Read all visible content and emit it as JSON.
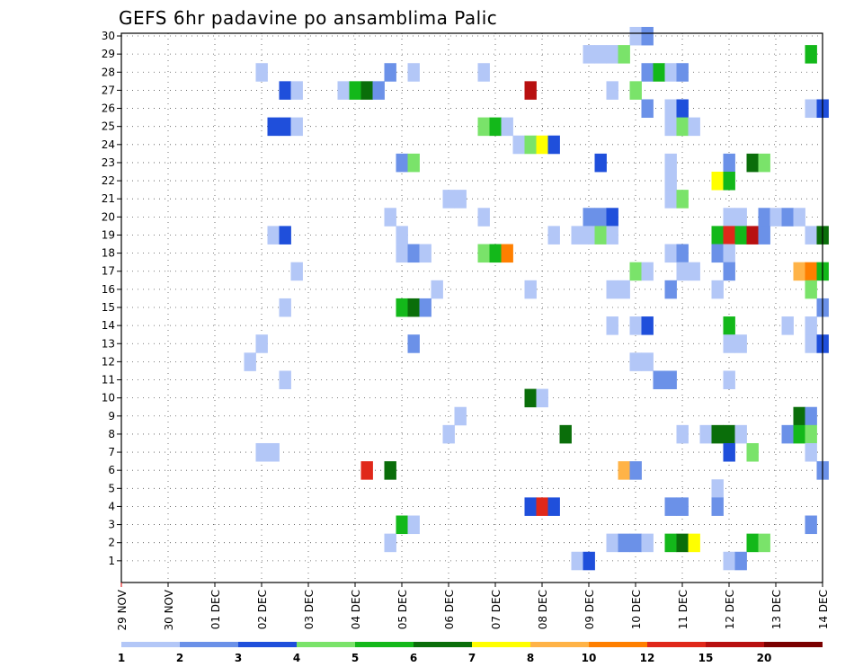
{
  "chart_data": {
    "type": "heatmap",
    "title": "GEFS 6hr padavine po ansamblima Palic",
    "xlabel": "",
    "ylabel": "",
    "x_ticks": [
      "29 NOV",
      "30 NOV",
      "01 DEC",
      "02 DEC",
      "03 DEC",
      "04 DEC",
      "05 DEC",
      "06 DEC",
      "07 DEC",
      "08 DEC",
      "09 DEC",
      "10 DEC",
      "11 DEC",
      "12 DEC",
      "13 DEC",
      "14 DEC"
    ],
    "y_ticks": [
      1,
      2,
      3,
      4,
      5,
      6,
      7,
      8,
      9,
      10,
      11,
      12,
      13,
      14,
      15,
      16,
      17,
      18,
      19,
      20,
      21,
      22,
      23,
      24,
      25,
      26,
      27,
      28,
      29,
      30
    ],
    "xlim": [
      0,
      15
    ],
    "ylim": [
      0,
      30
    ],
    "grid": true,
    "legend": {
      "placement": "bottom",
      "labels": [
        "1",
        "2",
        "3",
        "4",
        "5",
        "6",
        "7",
        "8",
        "10",
        "12",
        "15",
        "20"
      ],
      "colors": [
        "#b3c7f7",
        "#6b91e8",
        "#1f4fdb",
        "#7ae36a",
        "#13b81a",
        "#0a6e0a",
        "#ffff00",
        "#ffb347",
        "#ff7f00",
        "#e0281a",
        "#b81010",
        "#7a0000"
      ]
    },
    "cells": [
      {
        "x": 11.0,
        "y": 30,
        "level": 1
      },
      {
        "x": 11.25,
        "y": 30,
        "level": 2
      },
      {
        "x": 10.0,
        "y": 29,
        "level": 1
      },
      {
        "x": 10.25,
        "y": 29,
        "level": 1
      },
      {
        "x": 10.5,
        "y": 29,
        "level": 1
      },
      {
        "x": 10.75,
        "y": 29,
        "level": 4
      },
      {
        "x": 14.75,
        "y": 29,
        "level": 5
      },
      {
        "x": 3.0,
        "y": 28,
        "level": 1
      },
      {
        "x": 5.75,
        "y": 28,
        "level": 2
      },
      {
        "x": 6.25,
        "y": 28,
        "level": 1
      },
      {
        "x": 7.75,
        "y": 28,
        "level": 1
      },
      {
        "x": 11.25,
        "y": 28,
        "level": 2
      },
      {
        "x": 11.5,
        "y": 28,
        "level": 5
      },
      {
        "x": 11.75,
        "y": 28,
        "level": 1
      },
      {
        "x": 12.0,
        "y": 28,
        "level": 2
      },
      {
        "x": 3.5,
        "y": 27,
        "level": 3
      },
      {
        "x": 3.75,
        "y": 27,
        "level": 1
      },
      {
        "x": 4.75,
        "y": 27,
        "level": 1
      },
      {
        "x": 5.0,
        "y": 27,
        "level": 5
      },
      {
        "x": 5.25,
        "y": 27,
        "level": 6
      },
      {
        "x": 5.5,
        "y": 27,
        "level": 2
      },
      {
        "x": 8.75,
        "y": 27,
        "level": 11
      },
      {
        "x": 10.5,
        "y": 27,
        "level": 1
      },
      {
        "x": 11.0,
        "y": 27,
        "level": 4
      },
      {
        "x": 11.25,
        "y": 26,
        "level": 2
      },
      {
        "x": 11.75,
        "y": 26,
        "level": 1
      },
      {
        "x": 12.0,
        "y": 26,
        "level": 3
      },
      {
        "x": 14.75,
        "y": 26,
        "level": 1
      },
      {
        "x": 15.0,
        "y": 26,
        "level": 3
      },
      {
        "x": 3.25,
        "y": 25,
        "level": 3
      },
      {
        "x": 3.5,
        "y": 25,
        "level": 3
      },
      {
        "x": 3.75,
        "y": 25,
        "level": 1
      },
      {
        "x": 7.75,
        "y": 25,
        "level": 4
      },
      {
        "x": 8.0,
        "y": 25,
        "level": 5
      },
      {
        "x": 8.25,
        "y": 25,
        "level": 1
      },
      {
        "x": 11.75,
        "y": 25,
        "level": 1
      },
      {
        "x": 12.0,
        "y": 25,
        "level": 4
      },
      {
        "x": 12.25,
        "y": 25,
        "level": 1
      },
      {
        "x": 8.5,
        "y": 24,
        "level": 1
      },
      {
        "x": 8.75,
        "y": 24,
        "level": 4
      },
      {
        "x": 9.0,
        "y": 24,
        "level": 7
      },
      {
        "x": 9.25,
        "y": 24,
        "level": 3
      },
      {
        "x": 6.0,
        "y": 23,
        "level": 2
      },
      {
        "x": 6.25,
        "y": 23,
        "level": 4
      },
      {
        "x": 10.25,
        "y": 23,
        "level": 3
      },
      {
        "x": 11.75,
        "y": 23,
        "level": 1
      },
      {
        "x": 13.0,
        "y": 23,
        "level": 2
      },
      {
        "x": 13.5,
        "y": 23,
        "level": 6
      },
      {
        "x": 13.75,
        "y": 23,
        "level": 4
      },
      {
        "x": 11.75,
        "y": 22,
        "level": 1
      },
      {
        "x": 12.75,
        "y": 22,
        "level": 7
      },
      {
        "x": 13.0,
        "y": 22,
        "level": 5
      },
      {
        "x": 7.0,
        "y": 21,
        "level": 1
      },
      {
        "x": 7.25,
        "y": 21,
        "level": 1
      },
      {
        "x": 11.75,
        "y": 21,
        "level": 1
      },
      {
        "x": 12.0,
        "y": 21,
        "level": 4
      },
      {
        "x": 5.75,
        "y": 20,
        "level": 1
      },
      {
        "x": 7.75,
        "y": 20,
        "level": 1
      },
      {
        "x": 10.0,
        "y": 20,
        "level": 2
      },
      {
        "x": 10.25,
        "y": 20,
        "level": 2
      },
      {
        "x": 10.5,
        "y": 20,
        "level": 3
      },
      {
        "x": 13.0,
        "y": 20,
        "level": 1
      },
      {
        "x": 13.25,
        "y": 20,
        "level": 1
      },
      {
        "x": 13.75,
        "y": 20,
        "level": 2
      },
      {
        "x": 14.0,
        "y": 20,
        "level": 1
      },
      {
        "x": 14.25,
        "y": 20,
        "level": 2
      },
      {
        "x": 14.5,
        "y": 20,
        "level": 1
      },
      {
        "x": 3.25,
        "y": 19,
        "level": 1
      },
      {
        "x": 3.5,
        "y": 19,
        "level": 3
      },
      {
        "x": 6.0,
        "y": 19,
        "level": 1
      },
      {
        "x": 9.25,
        "y": 19,
        "level": 1
      },
      {
        "x": 9.75,
        "y": 19,
        "level": 1
      },
      {
        "x": 10.0,
        "y": 19,
        "level": 1
      },
      {
        "x": 10.25,
        "y": 19,
        "level": 4
      },
      {
        "x": 10.5,
        "y": 19,
        "level": 1
      },
      {
        "x": 12.75,
        "y": 19,
        "level": 5
      },
      {
        "x": 13.0,
        "y": 19,
        "level": 10
      },
      {
        "x": 13.25,
        "y": 19,
        "level": 5
      },
      {
        "x": 13.5,
        "y": 19,
        "level": 11
      },
      {
        "x": 13.75,
        "y": 19,
        "level": 2
      },
      {
        "x": 14.75,
        "y": 19,
        "level": 1
      },
      {
        "x": 15.0,
        "y": 19,
        "level": 6
      },
      {
        "x": 6.0,
        "y": 18,
        "level": 1
      },
      {
        "x": 6.25,
        "y": 18,
        "level": 2
      },
      {
        "x": 6.5,
        "y": 18,
        "level": 1
      },
      {
        "x": 7.75,
        "y": 18,
        "level": 4
      },
      {
        "x": 8.0,
        "y": 18,
        "level": 5
      },
      {
        "x": 8.25,
        "y": 18,
        "level": 9
      },
      {
        "x": 11.75,
        "y": 18,
        "level": 1
      },
      {
        "x": 12.0,
        "y": 18,
        "level": 2
      },
      {
        "x": 12.75,
        "y": 18,
        "level": 2
      },
      {
        "x": 13.0,
        "y": 18,
        "level": 1
      },
      {
        "x": 3.75,
        "y": 17,
        "level": 1
      },
      {
        "x": 11.0,
        "y": 17,
        "level": 4
      },
      {
        "x": 11.25,
        "y": 17,
        "level": 1
      },
      {
        "x": 12.0,
        "y": 17,
        "level": 1
      },
      {
        "x": 12.25,
        "y": 17,
        "level": 1
      },
      {
        "x": 13.0,
        "y": 17,
        "level": 2
      },
      {
        "x": 14.5,
        "y": 17,
        "level": 8
      },
      {
        "x": 14.75,
        "y": 17,
        "level": 9
      },
      {
        "x": 15.0,
        "y": 17,
        "level": 5
      },
      {
        "x": 6.75,
        "y": 16,
        "level": 1
      },
      {
        "x": 8.75,
        "y": 16,
        "level": 1
      },
      {
        "x": 10.5,
        "y": 16,
        "level": 1
      },
      {
        "x": 10.75,
        "y": 16,
        "level": 1
      },
      {
        "x": 11.75,
        "y": 16,
        "level": 2
      },
      {
        "x": 12.75,
        "y": 16,
        "level": 1
      },
      {
        "x": 14.75,
        "y": 16,
        "level": 4
      },
      {
        "x": 3.5,
        "y": 15,
        "level": 1
      },
      {
        "x": 6.0,
        "y": 15,
        "level": 5
      },
      {
        "x": 6.25,
        "y": 15,
        "level": 6
      },
      {
        "x": 6.5,
        "y": 15,
        "level": 2
      },
      {
        "x": 15.0,
        "y": 15,
        "level": 2
      },
      {
        "x": 10.5,
        "y": 14,
        "level": 1
      },
      {
        "x": 11.0,
        "y": 14,
        "level": 1
      },
      {
        "x": 11.25,
        "y": 14,
        "level": 3
      },
      {
        "x": 13.0,
        "y": 14,
        "level": 5
      },
      {
        "x": 14.25,
        "y": 14,
        "level": 1
      },
      {
        "x": 14.75,
        "y": 14,
        "level": 1
      },
      {
        "x": 3.0,
        "y": 13,
        "level": 1
      },
      {
        "x": 6.25,
        "y": 13,
        "level": 2
      },
      {
        "x": 13.0,
        "y": 13,
        "level": 1
      },
      {
        "x": 13.25,
        "y": 13,
        "level": 1
      },
      {
        "x": 14.75,
        "y": 13,
        "level": 1
      },
      {
        "x": 15.0,
        "y": 13,
        "level": 3
      },
      {
        "x": 2.75,
        "y": 12,
        "level": 1
      },
      {
        "x": 11.0,
        "y": 12,
        "level": 1
      },
      {
        "x": 11.25,
        "y": 12,
        "level": 1
      },
      {
        "x": 3.5,
        "y": 11,
        "level": 1
      },
      {
        "x": 11.5,
        "y": 11,
        "level": 2
      },
      {
        "x": 11.75,
        "y": 11,
        "level": 2
      },
      {
        "x": 13.0,
        "y": 11,
        "level": 1
      },
      {
        "x": 8.75,
        "y": 10,
        "level": 6
      },
      {
        "x": 9.0,
        "y": 10,
        "level": 1
      },
      {
        "x": 7.25,
        "y": 9,
        "level": 1
      },
      {
        "x": 14.5,
        "y": 9,
        "level": 6
      },
      {
        "x": 14.75,
        "y": 9,
        "level": 2
      },
      {
        "x": 7.0,
        "y": 8,
        "level": 1
      },
      {
        "x": 9.5,
        "y": 8,
        "level": 6
      },
      {
        "x": 12.0,
        "y": 8,
        "level": 1
      },
      {
        "x": 12.5,
        "y": 8,
        "level": 1
      },
      {
        "x": 12.75,
        "y": 8,
        "level": 6
      },
      {
        "x": 13.0,
        "y": 8,
        "level": 6
      },
      {
        "x": 13.25,
        "y": 8,
        "level": 1
      },
      {
        "x": 14.25,
        "y": 8,
        "level": 2
      },
      {
        "x": 14.5,
        "y": 8,
        "level": 5
      },
      {
        "x": 14.75,
        "y": 8,
        "level": 4
      },
      {
        "x": 3.0,
        "y": 7,
        "level": 1
      },
      {
        "x": 3.25,
        "y": 7,
        "level": 1
      },
      {
        "x": 13.0,
        "y": 7,
        "level": 3
      },
      {
        "x": 13.5,
        "y": 7,
        "level": 4
      },
      {
        "x": 14.75,
        "y": 7,
        "level": 1
      },
      {
        "x": 5.25,
        "y": 6,
        "level": 10
      },
      {
        "x": 5.75,
        "y": 6,
        "level": 6
      },
      {
        "x": 10.75,
        "y": 6,
        "level": 8
      },
      {
        "x": 11.0,
        "y": 6,
        "level": 2
      },
      {
        "x": 15.0,
        "y": 6,
        "level": 2
      },
      {
        "x": 12.75,
        "y": 5,
        "level": 1
      },
      {
        "x": 8.75,
        "y": 4,
        "level": 3
      },
      {
        "x": 9.0,
        "y": 4,
        "level": 10
      },
      {
        "x": 9.25,
        "y": 4,
        "level": 3
      },
      {
        "x": 11.75,
        "y": 4,
        "level": 2
      },
      {
        "x": 12.0,
        "y": 4,
        "level": 2
      },
      {
        "x": 12.75,
        "y": 4,
        "level": 2
      },
      {
        "x": 6.0,
        "y": 3,
        "level": 5
      },
      {
        "x": 6.25,
        "y": 3,
        "level": 1
      },
      {
        "x": 14.75,
        "y": 3,
        "level": 2
      },
      {
        "x": 5.75,
        "y": 2,
        "level": 1
      },
      {
        "x": 10.5,
        "y": 2,
        "level": 1
      },
      {
        "x": 10.75,
        "y": 2,
        "level": 2
      },
      {
        "x": 11.0,
        "y": 2,
        "level": 2
      },
      {
        "x": 11.25,
        "y": 2,
        "level": 1
      },
      {
        "x": 11.75,
        "y": 2,
        "level": 5
      },
      {
        "x": 12.0,
        "y": 2,
        "level": 6
      },
      {
        "x": 12.25,
        "y": 2,
        "level": 7
      },
      {
        "x": 13.5,
        "y": 2,
        "level": 5
      },
      {
        "x": 13.75,
        "y": 2,
        "level": 4
      },
      {
        "x": 9.75,
        "y": 1,
        "level": 1
      },
      {
        "x": 10.0,
        "y": 1,
        "level": 3
      },
      {
        "x": 13.0,
        "y": 1,
        "level": 1
      },
      {
        "x": 13.25,
        "y": 1,
        "level": 2
      }
    ]
  }
}
